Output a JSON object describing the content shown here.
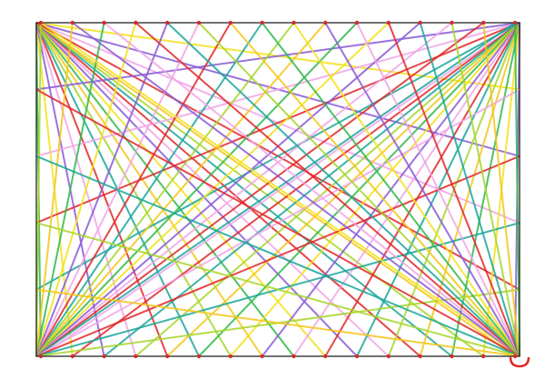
{
  "artwork": {
    "subject": "string-art-drawing",
    "colors": {
      "frame": "#222222",
      "pins": "#d42a2a",
      "strings": [
        "#2fb84a",
        "#f2e21a",
        "#8a5ad6",
        "#f0a6e8",
        "#e02828",
        "#1aa69a",
        "#a6d62a",
        "#f5c518"
      ]
    }
  }
}
